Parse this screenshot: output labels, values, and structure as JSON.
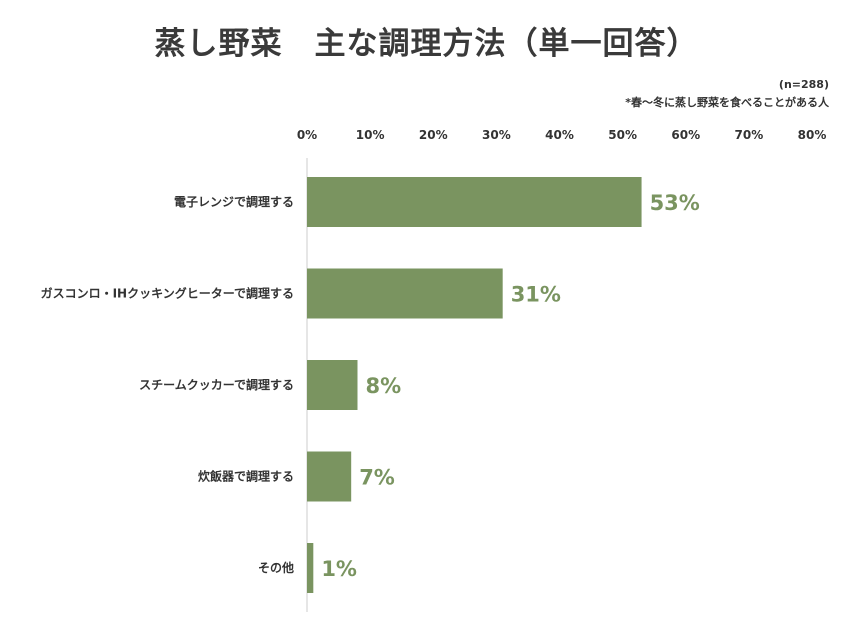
{
  "header": {
    "title": "蒸し野菜　主な調理方法（単一回答）",
    "sample_size": "(n=288)",
    "footnote": "*春〜冬に蒸し野菜を食べることがある人"
  },
  "colors": {
    "bar": "#7a9460",
    "label": "#7a9460",
    "text": "#333333",
    "axis": "#cccccc"
  },
  "chart_data": {
    "type": "bar",
    "orientation": "horizontal",
    "title": "蒸し野菜　主な調理方法（単一回答）",
    "categories": [
      "電子レンジで調理する",
      "ガスコンロ・IHクッキングヒーターで調理する",
      "スチームクッカーで調理する",
      "炊飯器で調理する",
      "その他"
    ],
    "values": [
      53,
      31,
      8,
      7,
      1
    ],
    "value_labels": [
      "53%",
      "31%",
      "8%",
      "7%",
      "1%"
    ],
    "xlim": [
      0,
      80
    ],
    "x_ticks": [
      0,
      10,
      20,
      30,
      40,
      50,
      60,
      70,
      80
    ],
    "x_tick_labels": [
      "0%",
      "10%",
      "20%",
      "30%",
      "40%",
      "50%",
      "60%",
      "70%",
      "80%"
    ],
    "x_axis_position": "top",
    "grid": false,
    "legend": "none"
  }
}
